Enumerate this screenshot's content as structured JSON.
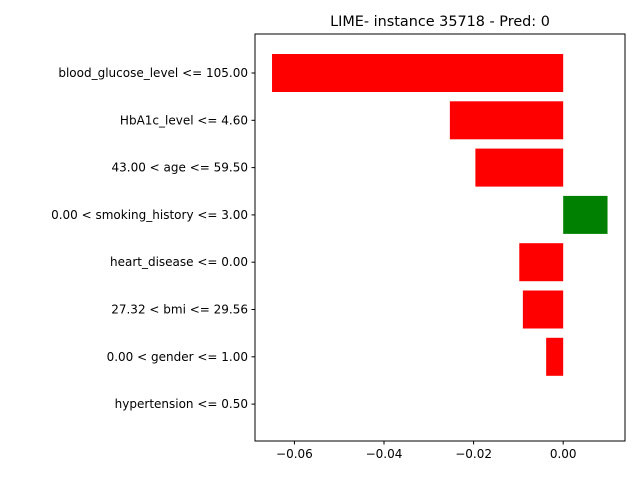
{
  "chart_data": {
    "type": "bar",
    "orientation": "horizontal",
    "title": "LIME- instance 35718 - Pred: 0",
    "xlabel": "",
    "ylabel": "",
    "xlim": [
      -0.0688,
      0.0138
    ],
    "grid": false,
    "categories": [
      "blood_glucose_level <= 105.00",
      "HbA1c_level <= 4.60",
      "43.00 < age <= 59.50",
      "0.00 < smoking_history <= 3.00",
      "heart_disease <= 0.00",
      "27.32 < bmi <= 29.56",
      "0.00 < gender <= 1.00",
      "hypertension <= 0.50"
    ],
    "values": [
      -0.065,
      -0.0253,
      -0.0196,
      0.0099,
      -0.0098,
      -0.009,
      -0.0038,
      0.0
    ],
    "colors": [
      "#ff0000",
      "#ff0000",
      "#ff0000",
      "#008000",
      "#ff0000",
      "#ff0000",
      "#ff0000",
      "#ff0000"
    ],
    "x_ticks": [
      {
        "value": -0.06,
        "label": "−0.06"
      },
      {
        "value": -0.04,
        "label": "−0.04"
      },
      {
        "value": -0.02,
        "label": "−0.02"
      },
      {
        "value": 0.0,
        "label": "0.00"
      }
    ]
  }
}
